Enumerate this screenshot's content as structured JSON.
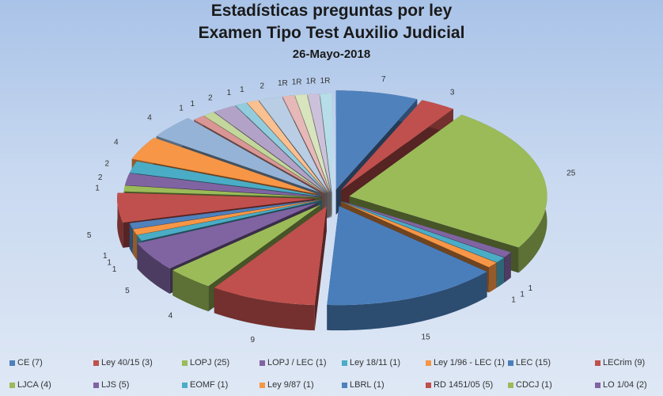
{
  "chart_data": {
    "type": "pie",
    "style": "3d-exploded",
    "title": "Estadísticas preguntas por ley",
    "subtitle": "Examen Tipo Test Auxilio Judicial",
    "date": "26-Mayo-2018",
    "slices": [
      {
        "name": "CE",
        "legend": "CE (7)",
        "value": 7,
        "label": "7",
        "color": "#4f81bd"
      },
      {
        "name": "Ley 40/15",
        "legend": "Ley 40/15 (3)",
        "value": 3,
        "label": "3",
        "color": "#c0504d"
      },
      {
        "name": "LOPJ",
        "legend": "LOPJ (25)",
        "value": 25,
        "label": "25",
        "color": "#9bbb59"
      },
      {
        "name": "LOPJ / LEC",
        "legend": "LOPJ / LEC (1)",
        "value": 1,
        "label": "1",
        "color": "#8064a2"
      },
      {
        "name": "Ley 18/11",
        "legend": "Ley 18/11 (1)",
        "value": 1,
        "label": "1",
        "color": "#4bacc6"
      },
      {
        "name": "Ley 1/96 - LEC",
        "legend": "Ley 1/96 - LEC (1)",
        "value": 1,
        "label": "1",
        "color": "#f79646"
      },
      {
        "name": "LEC",
        "legend": "LEC (15)",
        "value": 15,
        "label": "15",
        "color": "#4a7ebb"
      },
      {
        "name": "LECrim",
        "legend": "LECrim (9)",
        "value": 9,
        "label": "9",
        "color": "#c0504d"
      },
      {
        "name": "LJCA",
        "legend": "LJCA (4)",
        "value": 4,
        "label": "4",
        "color": "#9bbb59"
      },
      {
        "name": "LJS",
        "legend": "LJS (5)",
        "value": 5,
        "label": "5",
        "color": "#8064a2"
      },
      {
        "name": "EOMF",
        "legend": "EOMF (1)",
        "value": 1,
        "label": "1",
        "color": "#4bacc6"
      },
      {
        "name": "Ley 9/87",
        "legend": "Ley 9/87 (1)",
        "value": 1,
        "label": "1",
        "color": "#f79646"
      },
      {
        "name": "LBRL",
        "legend": "LBRL (1)",
        "value": 1,
        "label": "1",
        "color": "#4f81bd"
      },
      {
        "name": "RD 1451/05",
        "legend": "RD 1451/05 (5)",
        "value": 5,
        "label": "5",
        "color": "#c0504d"
      },
      {
        "name": "CDCJ",
        "legend": "CDCJ (1)",
        "value": 1,
        "label": "1",
        "color": "#9bbb59"
      },
      {
        "name": "LO 1/04",
        "legend": "LO 1/04 (2)",
        "value": 2,
        "label": "2",
        "color": "#8064a2"
      },
      {
        "value": 2,
        "label": "2",
        "color": "#4bacc6"
      },
      {
        "value": 4,
        "label": "4",
        "color": "#f79646"
      },
      {
        "value": 4,
        "label": "4",
        "color": "#95b3d7"
      },
      {
        "value": 1,
        "label": "1",
        "color": "#d99694"
      },
      {
        "value": 1,
        "label": "1",
        "color": "#c3d69b"
      },
      {
        "value": 2,
        "label": "2",
        "color": "#b3a2c7"
      },
      {
        "value": 1,
        "label": "1",
        "color": "#93cddd"
      },
      {
        "value": 1,
        "label": "1",
        "color": "#fac090"
      },
      {
        "value": 2,
        "label": "2",
        "color": "#b9cde5"
      },
      {
        "value": 1,
        "label": "1R",
        "color": "#e6b9b8"
      },
      {
        "value": 1,
        "label": "1R",
        "color": "#d7e4bd"
      },
      {
        "value": 1,
        "label": "1R",
        "color": "#ccc1da"
      },
      {
        "value": 1,
        "label": "1R",
        "color": "#b7dee8"
      }
    ],
    "legend_position": "bottom"
  }
}
